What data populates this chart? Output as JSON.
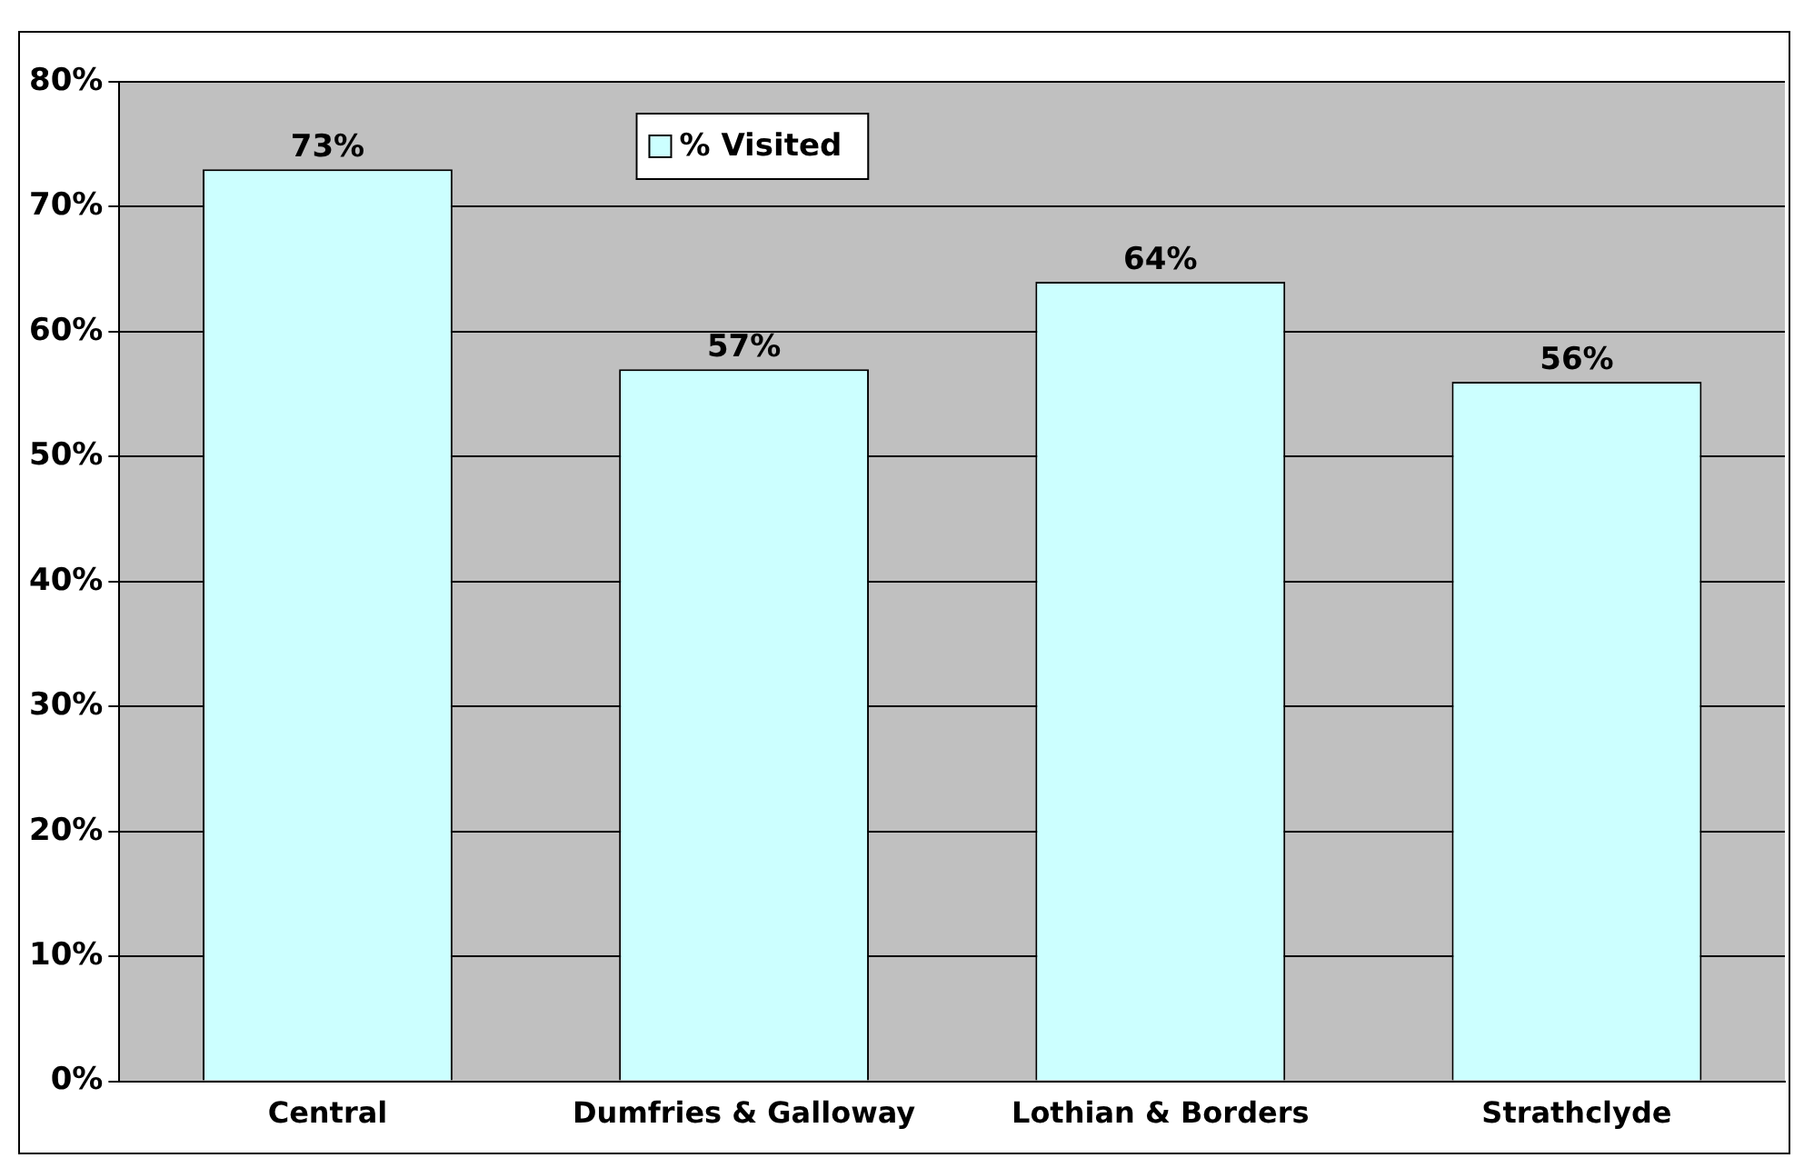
{
  "chart_data": {
    "type": "bar",
    "categories": [
      "Central",
      "Dumfries & Galloway",
      "Lothian & Borders",
      "Strathclyde"
    ],
    "series": [
      {
        "name": "% Visited",
        "color": "#ccffff",
        "values": [
          73,
          57,
          64,
          56
        ]
      }
    ],
    "ylim": [
      0,
      80
    ],
    "yticks": [
      {
        "value": 0,
        "label": "0%"
      },
      {
        "value": 10,
        "label": "10%"
      },
      {
        "value": 20,
        "label": "20%"
      },
      {
        "value": 30,
        "label": "30%"
      },
      {
        "value": 40,
        "label": "40%"
      },
      {
        "value": 50,
        "label": "50%"
      },
      {
        "value": 60,
        "label": "60%"
      },
      {
        "value": 70,
        "label": "70%"
      },
      {
        "value": 80,
        "label": "80%"
      }
    ],
    "value_labels": [
      "73%",
      "57%",
      "64%",
      "56%"
    ],
    "grid": "y",
    "legend": "top"
  }
}
